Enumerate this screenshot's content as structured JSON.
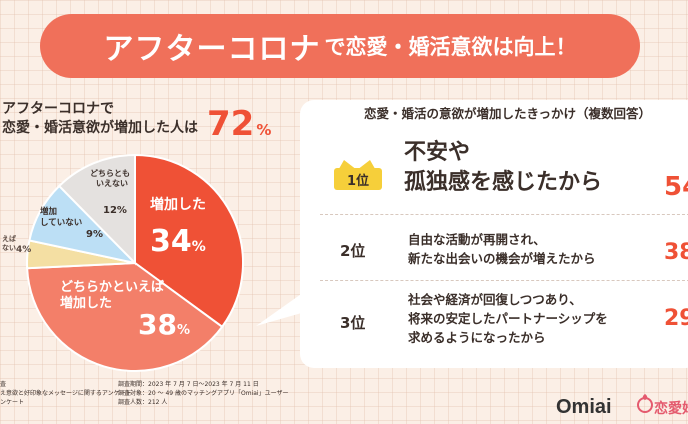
{
  "banner": {
    "emphasis": "アフターコロナ",
    "rest": "で恋愛・婚活意欲は向上！"
  },
  "left_heading": {
    "line1": "アフターコロナで",
    "line2": "恋愛・婚活意欲が増加した人は",
    "percent": "72",
    "unit": "%"
  },
  "chart_data": [
    {
      "type": "pie",
      "slices": [
        {
          "name": "増加した",
          "value": 34,
          "color": "#ef5136"
        },
        {
          "name": "どちらかといえば増加した",
          "value": 38,
          "color": "#f37f69"
        },
        {
          "name": "どちらかといえば増加していない",
          "value": 4,
          "color": "#f4dfa3"
        },
        {
          "name": "増加していない",
          "value": 9,
          "color": "#bcdff5"
        },
        {
          "name": "どちらともいえない",
          "value": 12,
          "color": "#e4e1df"
        }
      ]
    },
    {
      "type": "table",
      "title": "恋愛・婚活の意欲が増加したきっかけ（複数回答）",
      "rows": [
        {
          "rank": "1位",
          "lines": [
            "不安や",
            "孤独感を感じたから"
          ],
          "percent": "54"
        },
        {
          "rank": "2位",
          "lines": [
            "自由な活動が再開され、",
            "新たな出会いの機会が増えたから"
          ],
          "percent": "38"
        },
        {
          "rank": "3位",
          "lines": [
            "社会や経済が回復しつつあり、",
            "将来の安定したパートナーシップを",
            "求めるようになったから"
          ],
          "percent": "29"
        }
      ]
    }
  ],
  "pie_labels": {
    "s1_l1": "増加した",
    "s1_pct": "34",
    "unit": "%",
    "s2_l1": "どちらかといえば",
    "s2_l2": "増加した",
    "s2_pct": "38",
    "s3_l1": "えば",
    "s3_l2": "ない",
    "s3_pct": "4",
    "s4_l1": "増加",
    "s4_l2": "していない",
    "s4_pct": "9",
    "s5_l1": "どちらとも",
    "s5_l2": "いえない",
    "s5_pct": "12"
  },
  "footer": {
    "left1": "査",
    "left2": "え意欲と好印象なメッセージに関するアンケート",
    "left3": "ンケート",
    "mid1": "調査期間：2023 年 7 月 7 日〜2023 年 7 月 11 日",
    "mid2": "調査対象：20 〜 49 歳のマッチングアプリ「Omiai」ユーザー",
    "mid3": "調査人数：212 人"
  },
  "logos": {
    "omiai": "Omiai",
    "koi": "恋愛婚"
  },
  "colors": {
    "accent": "#ef5136",
    "banner": "#f0705a",
    "gold": "#f6cf3a"
  }
}
